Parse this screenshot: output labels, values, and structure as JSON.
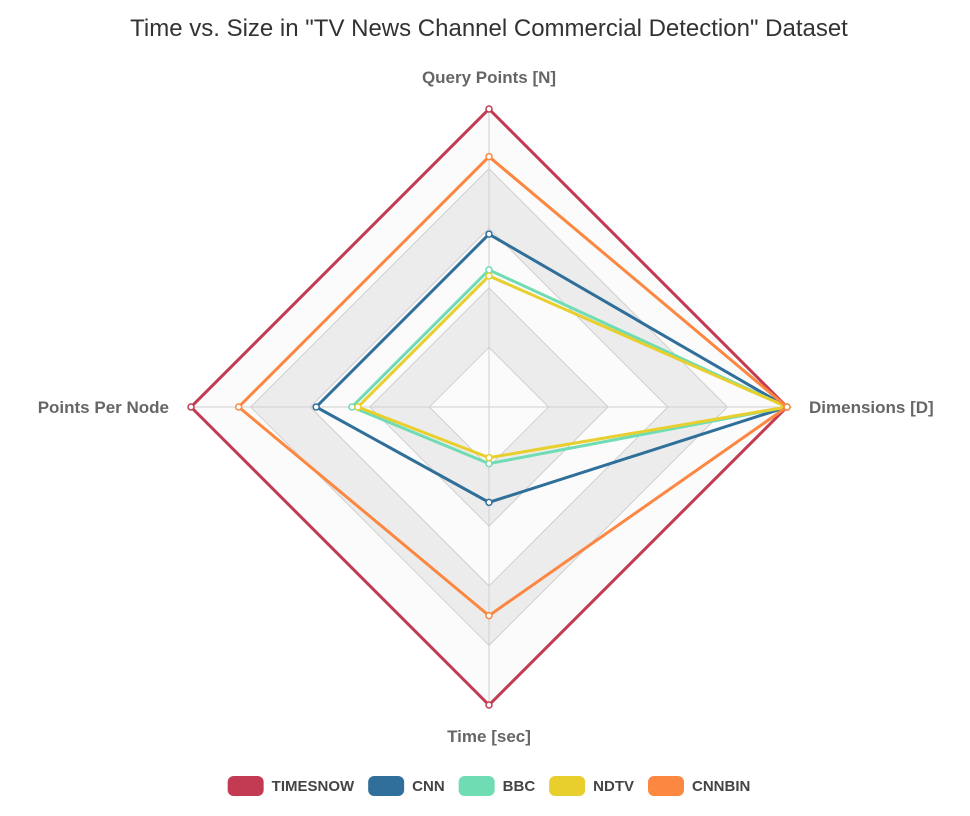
{
  "chart_data": {
    "type": "radar",
    "title": "Time vs. Size in \"TV News Channel Commercial Detection\" Dataset",
    "axes": [
      "Query Points [N]",
      "Dimensions [D]",
      "Time [sec]",
      "Points Per Node"
    ],
    "scale": {
      "min": 0,
      "max": 5,
      "step": 1
    },
    "series": [
      {
        "name": "TIMESNOW",
        "color": "#c23b52",
        "values": [
          5.0,
          5.0,
          5.0,
          5.0
        ]
      },
      {
        "name": "CNN",
        "color": "#2f6f99",
        "values": [
          2.9,
          5.0,
          1.6,
          2.9
        ]
      },
      {
        "name": "BBC",
        "color": "#6fdcb4",
        "values": [
          2.3,
          5.0,
          0.95,
          2.3
        ]
      },
      {
        "name": "NDTV",
        "color": "#e8cf2e",
        "values": [
          2.2,
          5.0,
          0.85,
          2.2
        ]
      },
      {
        "name": "CNNBIN",
        "color": "#fb8741",
        "values": [
          4.2,
          5.0,
          3.5,
          4.2
        ]
      }
    ],
    "grid": true,
    "legend_position": "bottom"
  }
}
